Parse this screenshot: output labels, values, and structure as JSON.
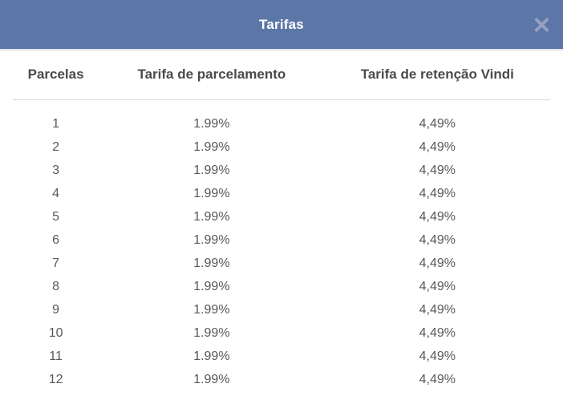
{
  "modal": {
    "title": "Tarifas",
    "close_icon": "x-mark"
  },
  "theme": {
    "header_bg": "#5d76a8",
    "header_border": "#e0e1e9",
    "title_color": "#ffffff",
    "close_icon_color": "#96a2c0",
    "column_header_color": "#4a4a4a",
    "cell_color": "#585858",
    "divider_color": "#d8d8d8"
  },
  "table": {
    "columns": [
      "Parcelas",
      "Tarifa de parcelamento",
      "Tarifa de retenção Vindi"
    ],
    "rows": [
      [
        "1",
        "1.99%",
        "4,49%"
      ],
      [
        "2",
        "1.99%",
        "4,49%"
      ],
      [
        "3",
        "1.99%",
        "4,49%"
      ],
      [
        "4",
        "1.99%",
        "4,49%"
      ],
      [
        "5",
        "1.99%",
        "4,49%"
      ],
      [
        "6",
        "1.99%",
        "4,49%"
      ],
      [
        "7",
        "1.99%",
        "4,49%"
      ],
      [
        "8",
        "1.99%",
        "4,49%"
      ],
      [
        "9",
        "1.99%",
        "4,49%"
      ],
      [
        "10",
        "1.99%",
        "4,49%"
      ],
      [
        "11",
        "1.99%",
        "4,49%"
      ],
      [
        "12",
        "1.99%",
        "4,49%"
      ]
    ]
  }
}
